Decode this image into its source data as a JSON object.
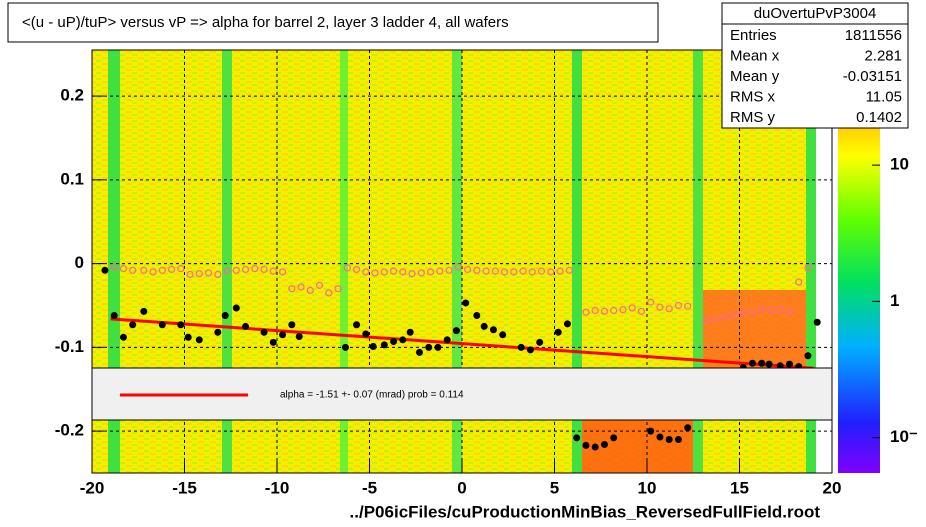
{
  "chart_data": {
    "type": "scatter",
    "title": "<(u - uP)/tuP> versus   vP => alpha for barrel 2, layer 3 ladder 4, all wafers",
    "x_label": "../P06icFiles/cuProductionMinBias_ReversedFullField.root",
    "xlim": [
      -20,
      20
    ],
    "ylim": [
      -0.25,
      0.255
    ],
    "xticks": [
      -20,
      -15,
      -10,
      -5,
      0,
      5,
      10,
      15,
      20
    ],
    "yticks": [
      -0.2,
      -0.1,
      0,
      0.1,
      0.2
    ],
    "grid": true,
    "series": [
      {
        "name": "profile",
        "color": "#000000",
        "x": [
          -19.3,
          -18.8,
          -18.3,
          -17.8,
          -17.2,
          -16.2,
          -15.2,
          -14.8,
          -14.2,
          -13.2,
          -12.8,
          -12.2,
          -11.7,
          -10.7,
          -10.2,
          -9.7,
          -9.2,
          -8.8,
          -6.3,
          -5.7,
          -5.2,
          -4.8,
          -4.2,
          -3.7,
          -3.2,
          -2.8,
          -2.3,
          -1.8,
          -1.3,
          -0.8,
          -0.3,
          0.2,
          0.8,
          1.2,
          1.7,
          2.2,
          3.2,
          3.7,
          4.2,
          5.2,
          5.7,
          6.2,
          6.7,
          7.2,
          7.7,
          8.2,
          10.2,
          10.7,
          11.2,
          11.7,
          12.2,
          15.2,
          15.7,
          16.2,
          16.6,
          17.2,
          17.7,
          18.2,
          18.7,
          19.2
        ],
        "values": [
          -0.008,
          -0.062,
          -0.088,
          -0.073,
          -0.057,
          -0.073,
          -0.073,
          -0.088,
          -0.091,
          -0.082,
          -0.062,
          -0.053,
          -0.075,
          -0.082,
          -0.094,
          -0.085,
          -0.073,
          -0.087,
          -0.1,
          -0.073,
          -0.084,
          -0.099,
          -0.097,
          -0.093,
          -0.091,
          -0.082,
          -0.106,
          -0.1,
          -0.1,
          -0.091,
          -0.08,
          -0.047,
          -0.062,
          -0.075,
          -0.079,
          -0.085,
          -0.1,
          -0.103,
          -0.094,
          -0.082,
          -0.072,
          -0.208,
          -0.217,
          -0.219,
          -0.216,
          -0.208,
          -0.2,
          -0.207,
          -0.21,
          -0.21,
          -0.196,
          -0.124,
          -0.119,
          -0.119,
          -0.12,
          -0.122,
          -0.12,
          -0.123,
          -0.11,
          -0.07
        ]
      },
      {
        "name": "mean",
        "color": "#ff6699",
        "x": [
          -18.8,
          -18.3,
          -17.8,
          -17.2,
          -16.7,
          -16.2,
          -15.7,
          -15.2,
          -14.7,
          -14.2,
          -13.7,
          -13.2,
          -12.7,
          -12.2,
          -11.7,
          -11.2,
          -10.7,
          -10.2,
          -9.7,
          -9.2,
          -8.7,
          -8.2,
          -7.7,
          -7.2,
          -6.7,
          -6.2,
          -5.7,
          -5.2,
          -4.7,
          -4.2,
          -3.7,
          -3.2,
          -2.7,
          -2.2,
          -1.7,
          -1.2,
          -0.7,
          -0.2,
          0.3,
          0.8,
          1.3,
          1.8,
          2.3,
          2.8,
          3.3,
          3.8,
          4.3,
          4.8,
          5.3,
          5.8,
          6.7,
          7.2,
          7.7,
          8.2,
          8.7,
          9.2,
          9.7,
          10.2,
          10.7,
          11.2,
          11.7,
          12.2,
          13.2,
          13.7,
          14.2,
          14.7,
          15.2,
          15.7,
          16.2,
          16.7,
          17.2,
          17.7,
          18.2,
          18.7
        ],
        "values": [
          -0.004,
          -0.006,
          -0.008,
          -0.008,
          -0.01,
          -0.008,
          -0.007,
          -0.006,
          -0.013,
          -0.012,
          -0.011,
          -0.013,
          -0.009,
          -0.008,
          -0.007,
          -0.006,
          -0.007,
          -0.009,
          -0.01,
          -0.03,
          -0.028,
          -0.032,
          -0.026,
          -0.035,
          -0.03,
          -0.005,
          -0.007,
          -0.01,
          -0.011,
          -0.01,
          -0.009,
          -0.01,
          -0.012,
          -0.011,
          -0.01,
          -0.009,
          -0.008,
          -0.004,
          -0.007,
          -0.008,
          -0.009,
          -0.009,
          -0.01,
          -0.01,
          -0.009,
          -0.01,
          -0.009,
          -0.01,
          -0.009,
          -0.008,
          -0.058,
          -0.056,
          -0.057,
          -0.056,
          -0.055,
          -0.053,
          -0.057,
          -0.046,
          -0.052,
          -0.054,
          -0.05,
          -0.051,
          -0.068,
          -0.066,
          -0.064,
          -0.061,
          -0.059,
          -0.058,
          -0.054,
          -0.056,
          -0.055,
          -0.057,
          -0.022,
          -0.005
        ]
      }
    ],
    "fit": {
      "color": "#ff0000",
      "x": [
        -19,
        19
      ],
      "values": [
        -0.066,
        -0.125
      ]
    },
    "legend_text": "alpha =   -1.51 +-  0.07 (mrad) prob = 0.114",
    "zlim": [
      0.055,
      70
    ],
    "zlog": true,
    "zticks": [
      {
        "value": 0.1,
        "label": "10⁻"
      },
      1,
      10
    ],
    "stats": {
      "title": "duOvertuPvP3004",
      "rows": [
        [
          "Entries",
          1811556
        ],
        [
          "Mean x",
          2.281
        ],
        [
          "Mean y",
          -0.03151
        ],
        [
          "RMS x",
          11.05
        ],
        [
          "RMS y",
          0.1402
        ]
      ]
    }
  }
}
